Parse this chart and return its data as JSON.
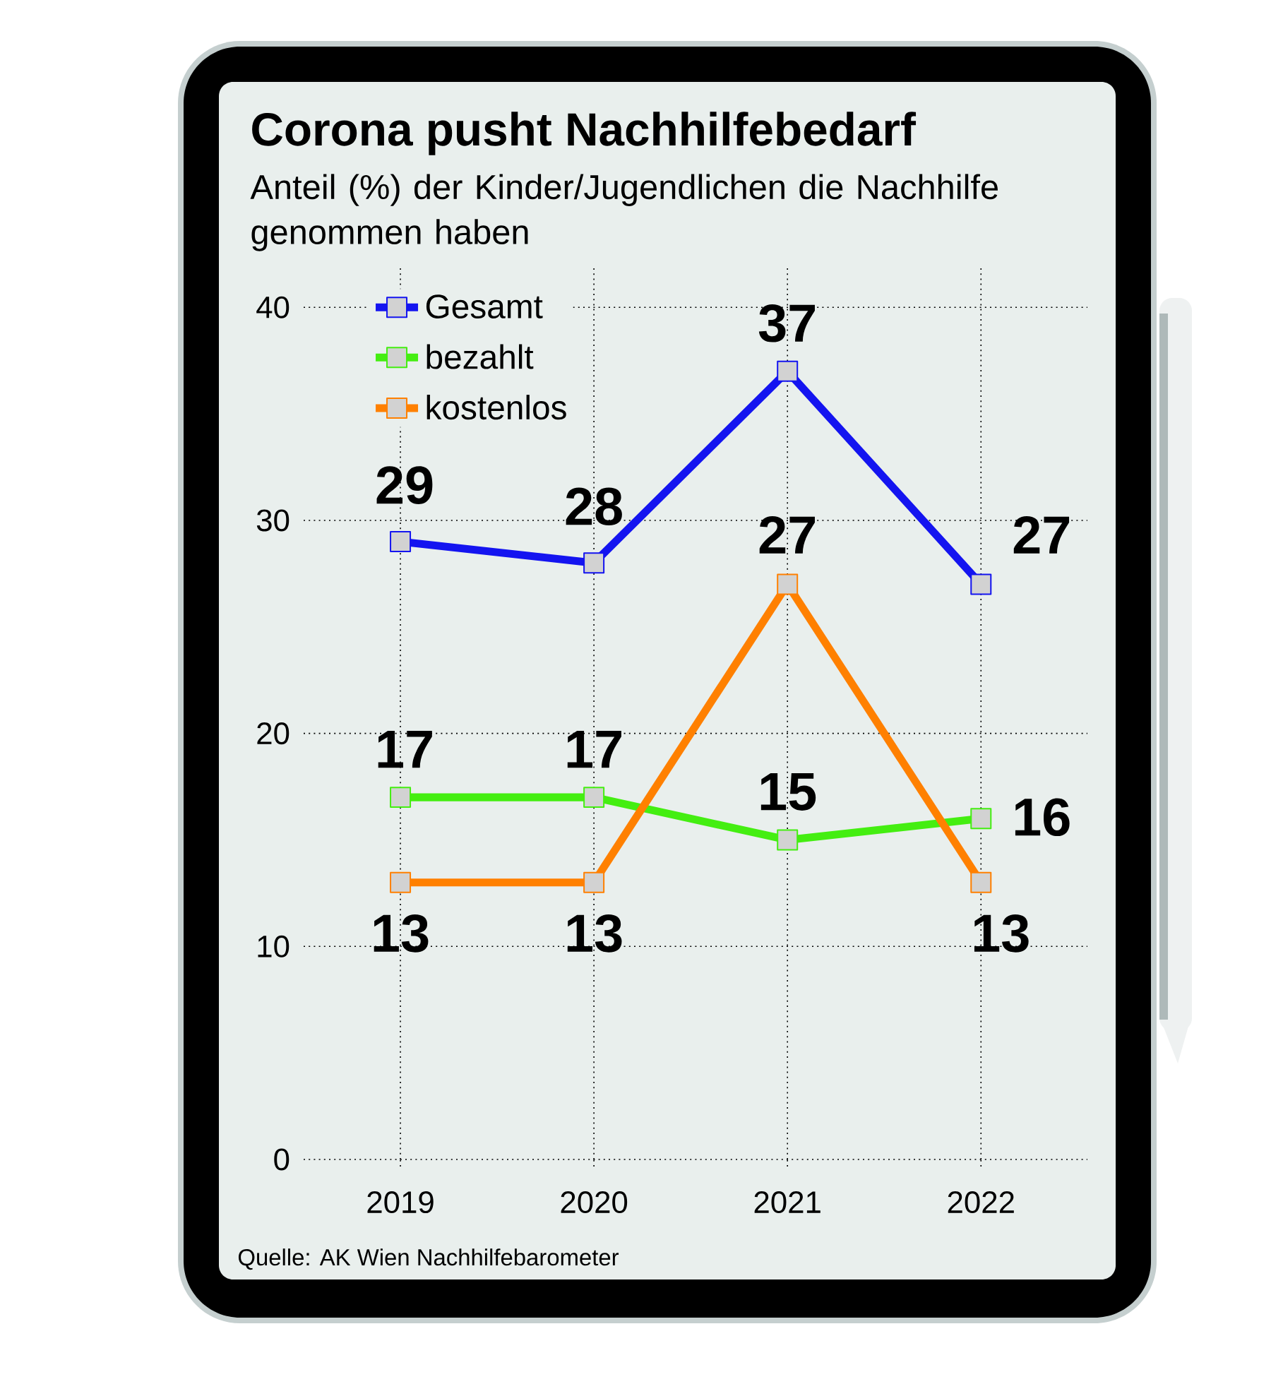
{
  "chart_data": {
    "type": "line",
    "title": "Corona pusht Nachhilfebedarf",
    "subtitle": "Anteil (%) der Kinder/Jugendlichen die Nachhilfe genommen haben",
    "categories": [
      "2019",
      "2020",
      "2021",
      "2022"
    ],
    "series": [
      {
        "name": "Gesamt",
        "color": "#1414f0",
        "values": [
          29,
          28,
          37,
          27
        ]
      },
      {
        "name": "bezahlt",
        "color": "#44ee11",
        "values": [
          17,
          17,
          15,
          16
        ]
      },
      {
        "name": "kostenlos",
        "color": "#ff8000",
        "values": [
          13,
          13,
          27,
          13
        ]
      }
    ],
    "ylim": [
      0,
      41.5
    ],
    "yticks": [
      0,
      10,
      20,
      30,
      40
    ],
    "grid": true,
    "legend": "top left",
    "marker": "square",
    "line_style": "solid",
    "data_labels": true,
    "annotations": [
      "Quelle: AK Wien Nachhilfebarometer"
    ]
  }
}
